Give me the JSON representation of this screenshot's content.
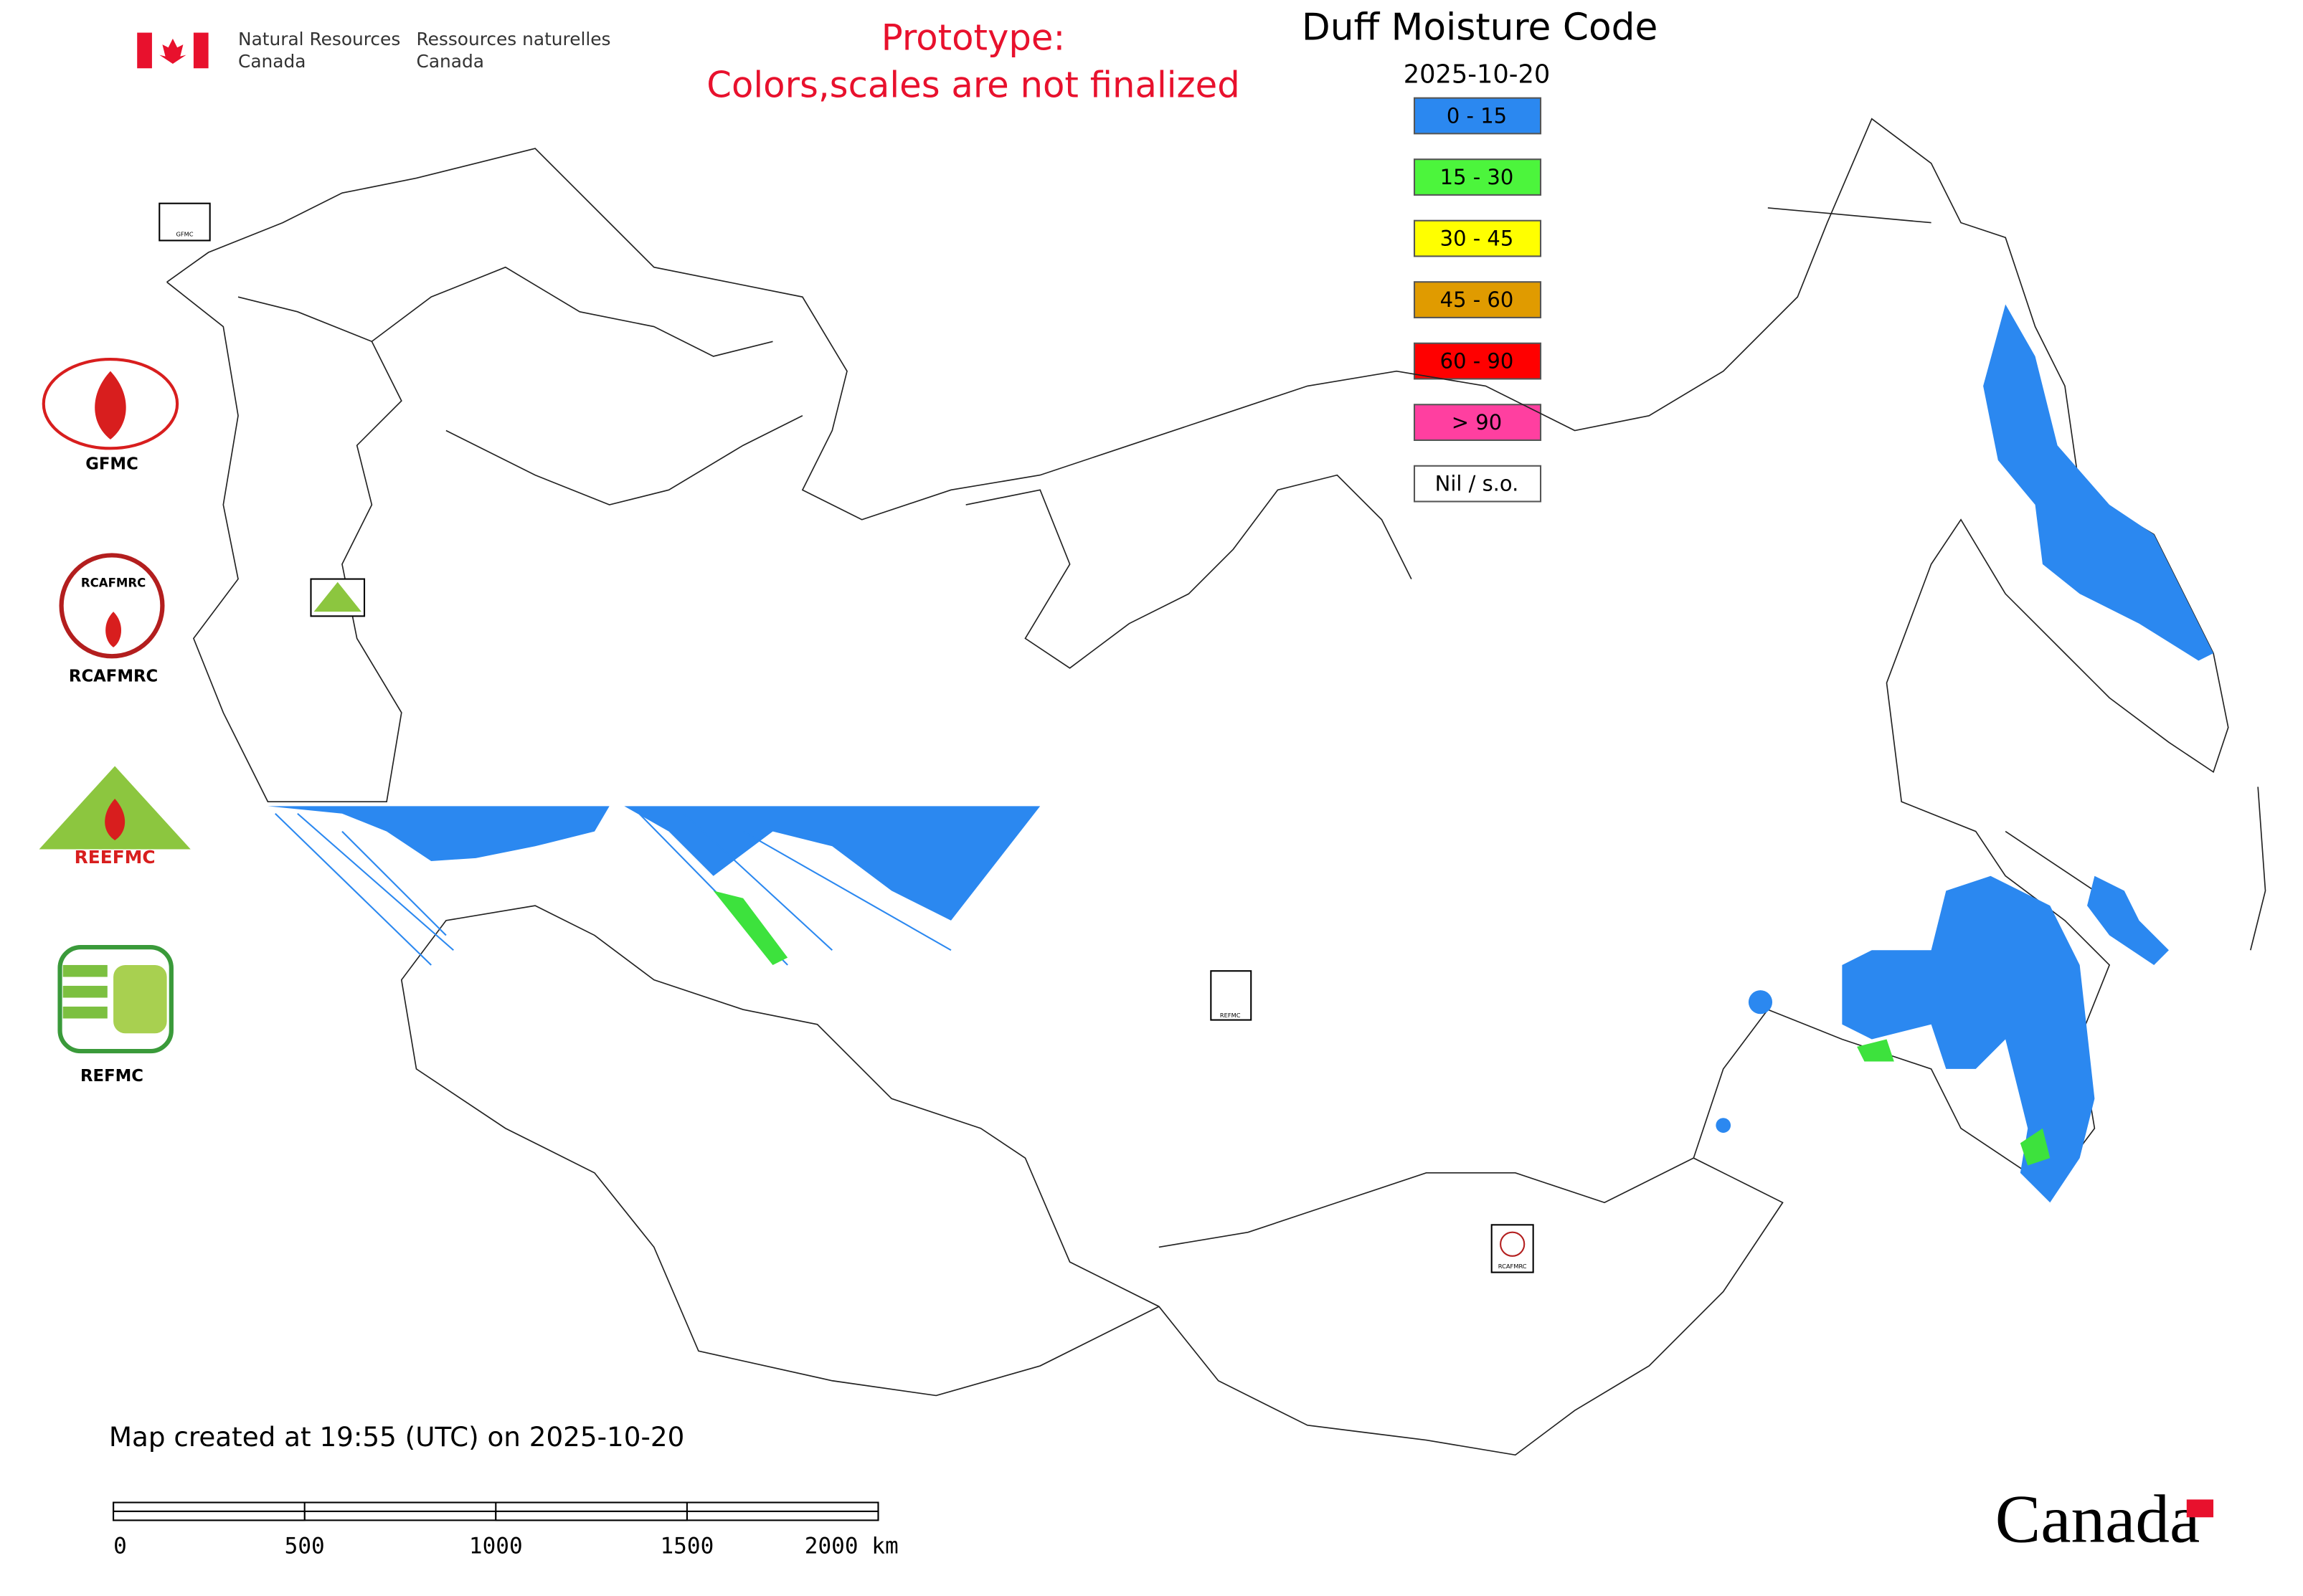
{
  "header": {
    "department_en": [
      "Natural Resources",
      "Canada"
    ],
    "department_fr": [
      "Ressources naturelles",
      "Canada"
    ],
    "notice": [
      "Prototype:",
      "Colors,scales are not finalized"
    ]
  },
  "map": {
    "title": "Duff Moisture Code",
    "date": "2025-10-20",
    "legend": [
      {
        "label": "0 - 15",
        "color": "#2b88f0"
      },
      {
        "label": "15 - 30",
        "color": "#4cf53c"
      },
      {
        "label": "30 - 45",
        "color": "#ffff00"
      },
      {
        "label": "45 - 60",
        "color": "#e09b00"
      },
      {
        "label": "60 - 90",
        "color": "#ff0000"
      },
      {
        "label": "> 90",
        "color": "#ff3fa0"
      },
      {
        "label": "Nil / s.o.",
        "color": "#ffffff"
      }
    ]
  },
  "logos": [
    "GFMC",
    "RCAFMRC",
    "REEFMC",
    "REFMC"
  ],
  "footer": {
    "created": "Map created at 19:55 (UTC) on 2025-10-20",
    "scale_labels": [
      "0",
      "500",
      "1000",
      "1500",
      "2000 km"
    ],
    "wordmark": "Canada"
  }
}
